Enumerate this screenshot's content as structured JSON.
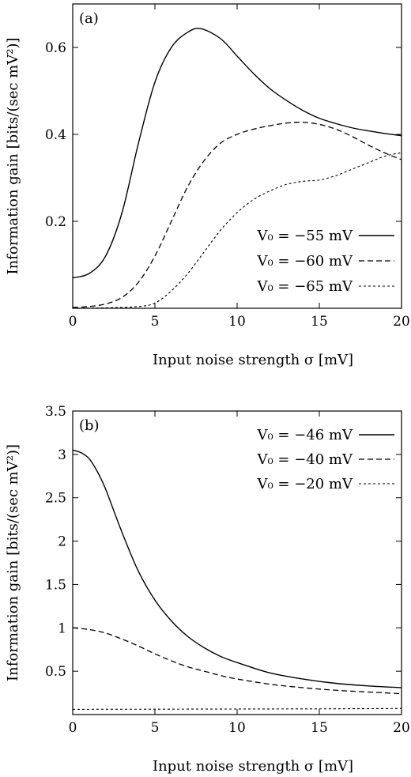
{
  "chart_data": [
    {
      "type": "line",
      "panel_label": "(a)",
      "xlabel": "Input noise strength σ [mV]",
      "ylabel": "Information  gain  [bits/(sec mV²)]",
      "xlim": [
        0,
        20
      ],
      "ylim": [
        0,
        0.7
      ],
      "xticks": [
        0,
        5,
        10,
        15,
        20
      ],
      "yticks": [
        0.2,
        0.4,
        0.6
      ],
      "grid": false,
      "legend_position": "bottom-right",
      "series": [
        {
          "name": "V₀ = −55 mV",
          "dash": "solid",
          "x": [
            0,
            1,
            2,
            3,
            4,
            5,
            6,
            7,
            7.8,
            9,
            10,
            11,
            12,
            13,
            14,
            15,
            16,
            17,
            18,
            19,
            20
          ],
          "y": [
            0.07,
            0.08,
            0.12,
            0.22,
            0.38,
            0.52,
            0.6,
            0.635,
            0.643,
            0.62,
            0.58,
            0.54,
            0.505,
            0.478,
            0.455,
            0.437,
            0.425,
            0.415,
            0.408,
            0.402,
            0.397
          ]
        },
        {
          "name": "V₀ = −60 mV",
          "dash": "dashed",
          "x": [
            0,
            1,
            2,
            3,
            4,
            5,
            6,
            7,
            8,
            9,
            10,
            11,
            12,
            13,
            14,
            15,
            16,
            17,
            18,
            19,
            20
          ],
          "y": [
            0.002,
            0.004,
            0.01,
            0.025,
            0.06,
            0.12,
            0.2,
            0.28,
            0.34,
            0.38,
            0.4,
            0.412,
            0.42,
            0.426,
            0.428,
            0.423,
            0.412,
            0.395,
            0.375,
            0.357,
            0.342
          ]
        },
        {
          "name": "V₀ = −65 mV",
          "dash": "dotted",
          "x": [
            0,
            2,
            4,
            5,
            6,
            7,
            8,
            9,
            10,
            11,
            12,
            13,
            14,
            15,
            16,
            17,
            18,
            19,
            20
          ],
          "y": [
            0,
            0.001,
            0.004,
            0.012,
            0.04,
            0.08,
            0.13,
            0.18,
            0.22,
            0.25,
            0.27,
            0.285,
            0.292,
            0.295,
            0.305,
            0.32,
            0.335,
            0.35,
            0.358
          ]
        }
      ]
    },
    {
      "type": "line",
      "panel_label": "(b)",
      "xlabel": "Input noise strength σ [mV]",
      "ylabel": "Information  gain  [bits/(sec mV²)]",
      "xlim": [
        0,
        20
      ],
      "ylim": [
        0,
        3.5
      ],
      "xticks": [
        0,
        5,
        10,
        15,
        20
      ],
      "yticks": [
        0.5,
        1,
        1.5,
        2,
        2.5,
        3,
        3.5
      ],
      "grid": false,
      "legend_position": "top-right",
      "series": [
        {
          "name": "V₀ = −46 mV",
          "dash": "solid",
          "x": [
            0,
            0.5,
            1,
            1.5,
            2,
            3,
            4,
            5,
            6,
            7,
            8,
            9,
            10,
            12,
            14,
            16,
            18,
            20
          ],
          "y": [
            3.05,
            3.02,
            2.95,
            2.8,
            2.6,
            2.1,
            1.65,
            1.32,
            1.08,
            0.9,
            0.77,
            0.67,
            0.6,
            0.48,
            0.41,
            0.36,
            0.33,
            0.31
          ]
        },
        {
          "name": "V₀ = −40 mV",
          "dash": "dashed",
          "x": [
            0,
            1,
            2,
            3,
            4,
            5,
            6,
            7,
            8,
            9,
            10,
            12,
            14,
            16,
            18,
            20
          ],
          "y": [
            1.0,
            0.98,
            0.94,
            0.87,
            0.79,
            0.7,
            0.62,
            0.55,
            0.5,
            0.45,
            0.41,
            0.35,
            0.31,
            0.28,
            0.26,
            0.24
          ]
        },
        {
          "name": "V₀ = −20 mV",
          "dash": "dotted",
          "x": [
            0,
            5,
            10,
            15,
            20
          ],
          "y": [
            0.06,
            0.062,
            0.064,
            0.066,
            0.07
          ]
        }
      ]
    }
  ]
}
